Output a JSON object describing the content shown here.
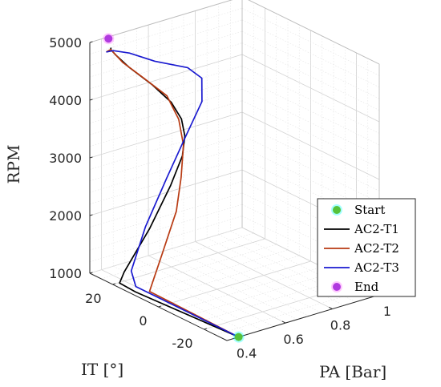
{
  "chart_data": {
    "type": "line3d",
    "axes": {
      "x": {
        "label": "PA [Bar]",
        "ticks": [
          "0.4",
          "0.6",
          "0.8",
          "1"
        ],
        "tick_values": [
          0.4,
          0.6,
          0.8,
          1.0
        ],
        "range": [
          0.35,
          1.0
        ]
      },
      "y": {
        "label": "IT [°]",
        "ticks": [
          "-20",
          "0",
          "20"
        ],
        "tick_values": [
          -20,
          0,
          20
        ],
        "range": [
          -30,
          30
        ]
      },
      "z": {
        "label": "RPM",
        "ticks": [
          "1000",
          "2000",
          "3000",
          "4000",
          "5000"
        ],
        "tick_values": [
          1000,
          2000,
          3000,
          4000,
          5000
        ],
        "range": [
          1000,
          5000
        ]
      }
    },
    "grid": true,
    "legend_position": "right",
    "markers": [
      {
        "name": "Start",
        "color": "#57c23a",
        "glow": "#00ffff",
        "point": [
          0.4,
          -30,
          1000
        ]
      },
      {
        "name": "End",
        "color": "#b03adf",
        "glow": "#ff66ff",
        "point": [
          0.42,
          29,
          5000
        ]
      }
    ],
    "series": [
      {
        "name": "AC2-T1",
        "color": "#000000",
        "points": [
          [
            0.4,
            -30,
            1000
          ],
          [
            0.37,
            12,
            1000
          ],
          [
            0.36,
            18,
            1050
          ],
          [
            0.37,
            17,
            1250
          ],
          [
            0.44,
            13,
            2000
          ],
          [
            0.51,
            11,
            2700
          ],
          [
            0.56,
            11,
            3150
          ],
          [
            0.58,
            12,
            3450
          ],
          [
            0.585,
            14,
            3700
          ],
          [
            0.57,
            17,
            3950
          ],
          [
            0.52,
            20,
            4250
          ],
          [
            0.46,
            24,
            4550
          ],
          [
            0.43,
            27,
            4750
          ],
          [
            0.43,
            29,
            4800
          ],
          [
            0.44,
            30,
            4800
          ]
        ]
      },
      {
        "name": "AC2-T2",
        "color": "#b83a12",
        "points": [
          [
            0.4,
            -30,
            1000
          ],
          [
            0.41,
            10,
            1000
          ],
          [
            0.46,
            14,
            1000
          ],
          [
            0.58,
            22,
            1200
          ],
          [
            0.68,
            26,
            1750
          ],
          [
            0.72,
            28,
            2250
          ],
          [
            0.73,
            28,
            2800
          ],
          [
            0.7,
            27,
            3300
          ],
          [
            0.64,
            26,
            3800
          ],
          [
            0.55,
            27,
            4200
          ],
          [
            0.47,
            28,
            4550
          ],
          [
            0.43,
            29,
            4800
          ],
          [
            0.42,
            30,
            4750
          ]
        ]
      },
      {
        "name": "AC2-T3",
        "color": "#1a1ad0",
        "points": [
          [
            0.4,
            -30,
            1000
          ],
          [
            0.4,
            15,
            1000
          ],
          [
            0.41,
            18,
            1200
          ],
          [
            0.5,
            21,
            1800
          ],
          [
            0.6,
            22,
            2500
          ],
          [
            0.72,
            26,
            3000
          ],
          [
            0.78,
            25,
            3550
          ],
          [
            0.75,
            22,
            4050
          ],
          [
            0.66,
            19,
            4400
          ],
          [
            0.53,
            20,
            4650
          ],
          [
            0.46,
            24,
            4800
          ],
          [
            0.43,
            28,
            4800
          ],
          [
            0.42,
            30,
            4750
          ]
        ]
      }
    ],
    "legend": [
      "Start",
      "AC2-T1",
      "AC2-T2",
      "AC2-T3",
      "End"
    ]
  }
}
